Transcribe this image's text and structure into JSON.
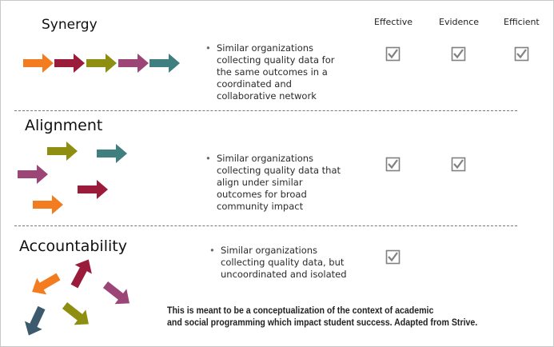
{
  "columns": {
    "effective": "Effective",
    "evidence": "Evidence",
    "efficient": "Efficient"
  },
  "sections": [
    {
      "title": "Synergy",
      "bullet": [
        "Similar organizations",
        "collecting quality data for",
        "the same outcomes in a",
        "coordinated and",
        "collaborative network"
      ],
      "checks": {
        "effective": true,
        "evidence": true,
        "efficient": true
      }
    },
    {
      "title": "Alignment",
      "bullet": [
        "Similar organizations",
        "collecting quality data that",
        "align under similar",
        "outcomes for broad",
        "community impact"
      ],
      "checks": {
        "effective": true,
        "evidence": true,
        "efficient": false
      }
    },
    {
      "title": "Accountability",
      "bullet": [
        "Similar organizations",
        "collecting quality data, but",
        "uncoordinated and isolated"
      ],
      "checks": {
        "effective": true,
        "evidence": false,
        "efficient": false
      }
    }
  ],
  "caption": [
    "This is meant to be a conceptualization of the context of academic",
    "and social programming which impact student success. Adapted from Strive."
  ],
  "colors": {
    "orange": "#f47c20",
    "crimson": "#9b1b3a",
    "olive": "#8e8e10",
    "plum": "#9b4677",
    "teal": "#3f7f80",
    "slate": "#3c5a6e",
    "check": "#808080"
  },
  "icons": {
    "arrow": "arrow-icon",
    "checkbox": "checked-box-icon"
  }
}
